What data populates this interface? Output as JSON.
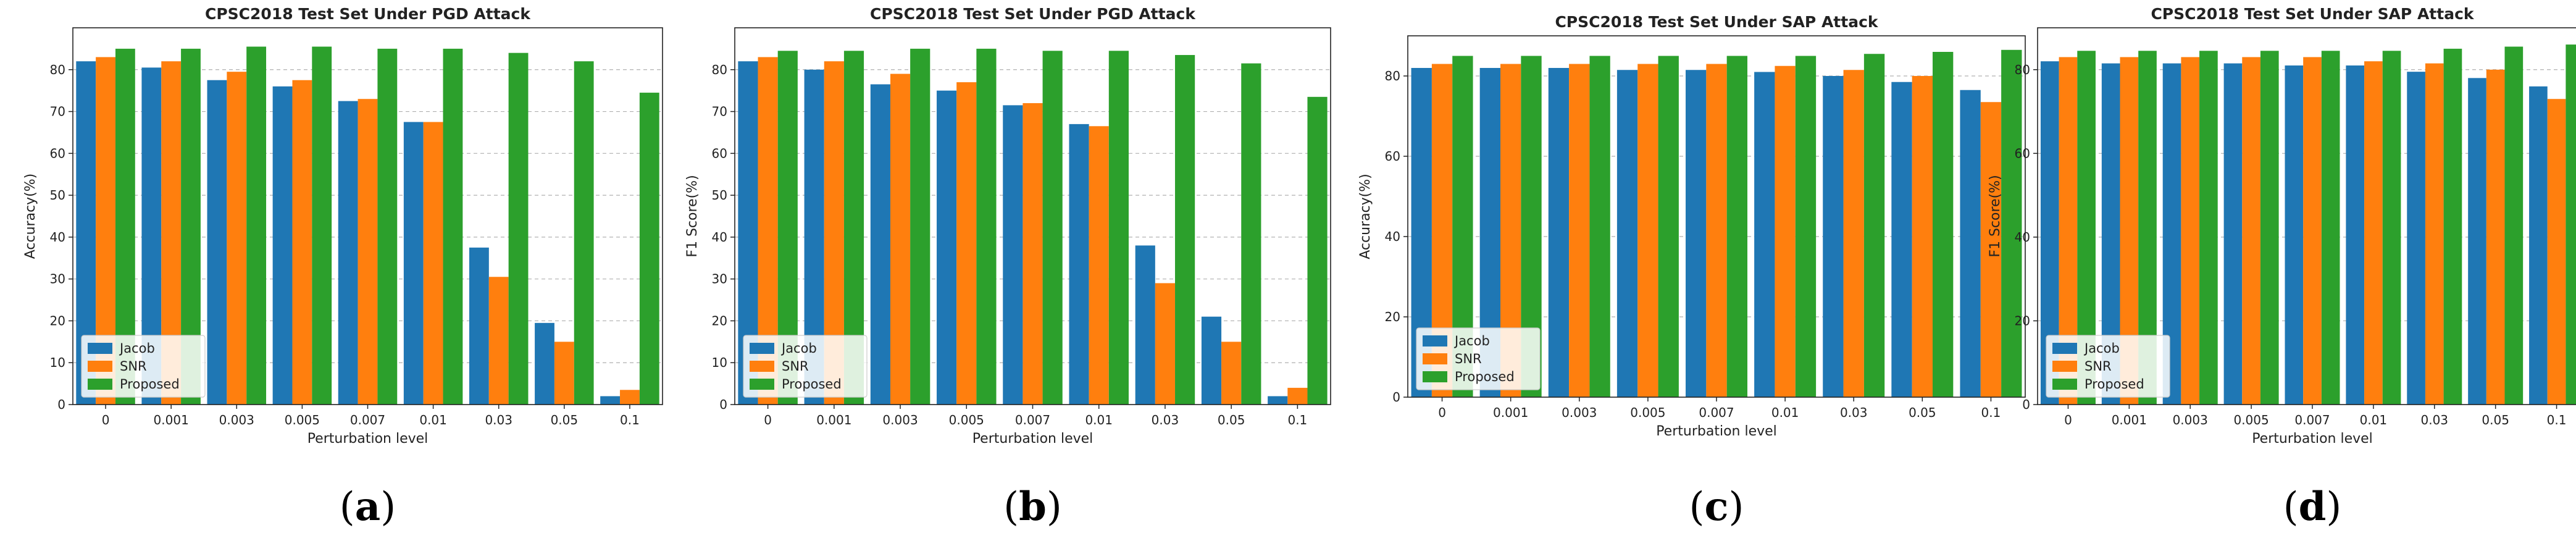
{
  "colors": {
    "Jacob": "#1f77b4",
    "SNR": "#ff7f0e",
    "Proposed": "#2ca02c"
  },
  "chart_data": [
    {
      "type": "bar",
      "caption": "a",
      "title": "CPSC2018 Test Set Under PGD Attack",
      "xlabel": "Perturbation level",
      "ylabel": "Accuracy(%)",
      "ylim": [
        0,
        90
      ],
      "yticks": [
        0,
        10,
        20,
        30,
        40,
        50,
        60,
        70,
        80
      ],
      "categories": [
        "0",
        "0.001",
        "0.003",
        "0.005",
        "0.007",
        "0.01",
        "0.03",
        "0.05",
        "0.1"
      ],
      "legend_position": "bottom-left",
      "series": [
        {
          "name": "Jacob",
          "values": [
            82,
            80.5,
            77.5,
            76,
            72.5,
            67.5,
            37.5,
            19.5,
            2
          ]
        },
        {
          "name": "SNR",
          "values": [
            83,
            82,
            79.5,
            77.5,
            73,
            67.5,
            30.5,
            15,
            3.5
          ]
        },
        {
          "name": "Proposed",
          "values": [
            85,
            85,
            85.5,
            85.5,
            85,
            85,
            84,
            82,
            74.5
          ]
        }
      ]
    },
    {
      "type": "bar",
      "caption": "b",
      "title": "CPSC2018 Test Set Under PGD Attack",
      "xlabel": "Perturbation level",
      "ylabel": "F1 Score(%)",
      "ylim": [
        0,
        90
      ],
      "yticks": [
        0,
        10,
        20,
        30,
        40,
        50,
        60,
        70,
        80
      ],
      "categories": [
        "0",
        "0.001",
        "0.003",
        "0.005",
        "0.007",
        "0.01",
        "0.03",
        "0.05",
        "0.1"
      ],
      "legend_position": "bottom-left",
      "series": [
        {
          "name": "Jacob",
          "values": [
            82,
            80,
            76.5,
            75,
            71.5,
            67,
            38,
            21,
            2
          ]
        },
        {
          "name": "SNR",
          "values": [
            83,
            82,
            79,
            77,
            72,
            66.5,
            29,
            15,
            4
          ]
        },
        {
          "name": "Proposed",
          "values": [
            84.5,
            84.5,
            85,
            85,
            84.5,
            84.5,
            83.5,
            81.5,
            73.5
          ]
        }
      ]
    },
    {
      "type": "bar",
      "caption": "c",
      "title": "CPSC2018 Test Set Under SAP Attack",
      "xlabel": "Perturbation level",
      "ylabel": "Accuracy(%)",
      "ylim": [
        0,
        90
      ],
      "yticks": [
        0,
        20,
        40,
        60,
        80
      ],
      "categories": [
        "0",
        "0.001",
        "0.003",
        "0.005",
        "0.007",
        "0.01",
        "0.03",
        "0.05",
        "0.1"
      ],
      "legend_position": "bottom-left",
      "series": [
        {
          "name": "Jacob",
          "values": [
            82,
            82,
            82,
            81.5,
            81.5,
            81,
            80,
            78.5,
            76.5
          ]
        },
        {
          "name": "SNR",
          "values": [
            83,
            83,
            83,
            83,
            83,
            82.5,
            81.5,
            80,
            73.5
          ]
        },
        {
          "name": "Proposed",
          "values": [
            85,
            85,
            85,
            85,
            85,
            85,
            85.5,
            86,
            86.5
          ]
        }
      ]
    },
    {
      "type": "bar",
      "caption": "d",
      "title": "CPSC2018 Test Set Under SAP Attack",
      "xlabel": "Perturbation level",
      "ylabel": "F1 Score(%)",
      "ylim": [
        0,
        90
      ],
      "yticks": [
        0,
        20,
        40,
        60,
        80
      ],
      "categories": [
        "0",
        "0.001",
        "0.003",
        "0.005",
        "0.007",
        "0.01",
        "0.03",
        "0.05",
        "0.1"
      ],
      "legend_position": "bottom-left",
      "series": [
        {
          "name": "Jacob",
          "values": [
            82,
            81.5,
            81.5,
            81.5,
            81,
            81,
            79.5,
            78,
            76
          ]
        },
        {
          "name": "SNR",
          "values": [
            83,
            83,
            83,
            83,
            83,
            82,
            81.5,
            80,
            73
          ]
        },
        {
          "name": "Proposed",
          "values": [
            84.5,
            84.5,
            84.5,
            84.5,
            84.5,
            84.5,
            85,
            85.5,
            86
          ]
        }
      ]
    }
  ]
}
